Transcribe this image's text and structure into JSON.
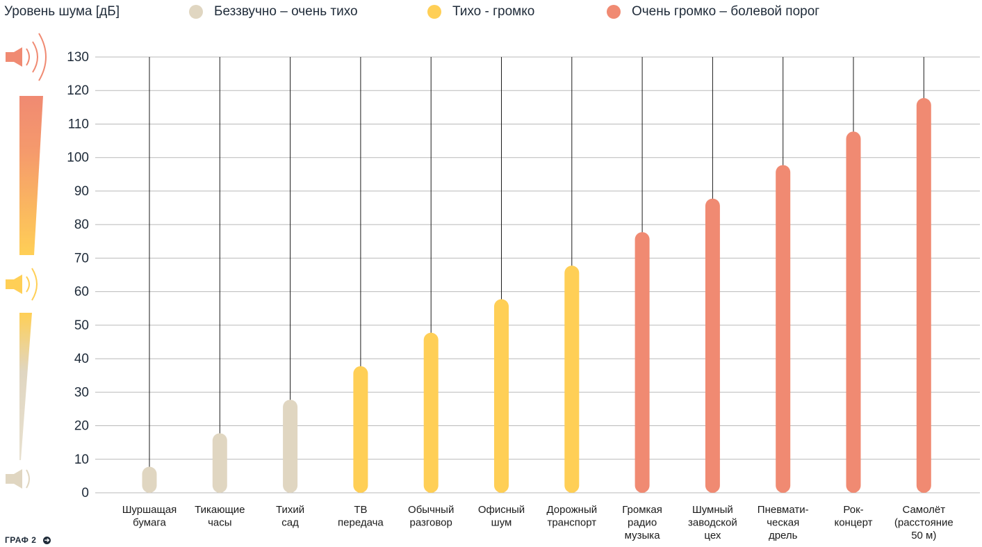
{
  "legend": {
    "axis_title": "Уровень шума [дБ]",
    "items": [
      {
        "label": "Беззвучно – очень тихо",
        "color": "#e0d6c1"
      },
      {
        "label": "Тихо - громко",
        "color": "#ffcf56"
      },
      {
        "label": "Очень громко – болевой порог",
        "color": "#f08a72"
      }
    ]
  },
  "footer": {
    "label": "ГРАФ 2"
  },
  "chart_data": {
    "type": "bar",
    "ylabel": "Уровень шума [дБ]",
    "ylim": [
      0,
      130
    ],
    "yticks": [
      0,
      10,
      20,
      30,
      40,
      50,
      60,
      70,
      80,
      90,
      100,
      110,
      120,
      130
    ],
    "grid": true,
    "categories": [
      [
        "Шуршащая",
        "бумага"
      ],
      [
        "Тикающие",
        "часы"
      ],
      [
        "Тихий",
        "сад"
      ],
      [
        "ТВ",
        "передача"
      ],
      [
        "Обычный",
        "разговор"
      ],
      [
        "Офисный",
        "шум"
      ],
      [
        "Дорожный",
        "транспорт"
      ],
      [
        "Громкая",
        "радио",
        "музыка"
      ],
      [
        "Шумный",
        "заводской",
        "цех"
      ],
      [
        "Пневмати-",
        "ческая",
        "дрель"
      ],
      [
        "Рок-",
        "концерт"
      ],
      [
        "Самолёт",
        "(расстояние",
        "50 м)"
      ]
    ],
    "values": [
      6,
      16,
      26,
      36,
      46,
      56,
      66,
      76,
      86,
      96,
      106,
      116
    ],
    "levels": [
      "quiet",
      "quiet",
      "quiet",
      "medium",
      "medium",
      "medium",
      "medium",
      "loud",
      "loud",
      "loud",
      "loud",
      "loud"
    ],
    "colors": {
      "quiet": "#e0d6c1",
      "medium": "#ffcf56",
      "loud": "#f08a72"
    }
  }
}
